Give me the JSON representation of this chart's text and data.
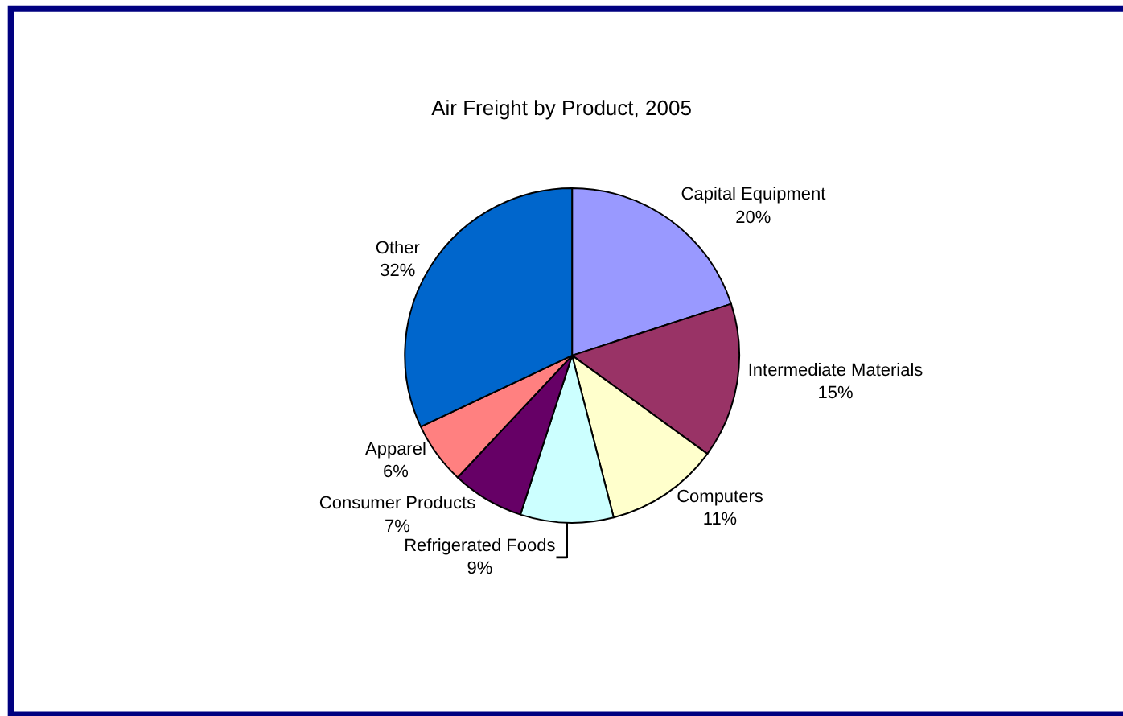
{
  "chart_data": {
    "type": "pie",
    "title": "Air Freight by Product, 2005",
    "categories": [
      "Capital Equipment",
      "Intermediate Materials",
      "Computers",
      "Refrigerated Foods",
      "Consumer Products",
      "Apparel",
      "Other"
    ],
    "values": [
      20,
      15,
      11,
      9,
      7,
      6,
      32
    ],
    "colors": [
      "#9999ff",
      "#993366",
      "#ffffcc",
      "#ccffff",
      "#660066",
      "#ff8080",
      "#0066cc"
    ],
    "value_labels": [
      "20%",
      "15%",
      "11%",
      "9%",
      "7%",
      "6%",
      "32%"
    ],
    "legend": false
  }
}
